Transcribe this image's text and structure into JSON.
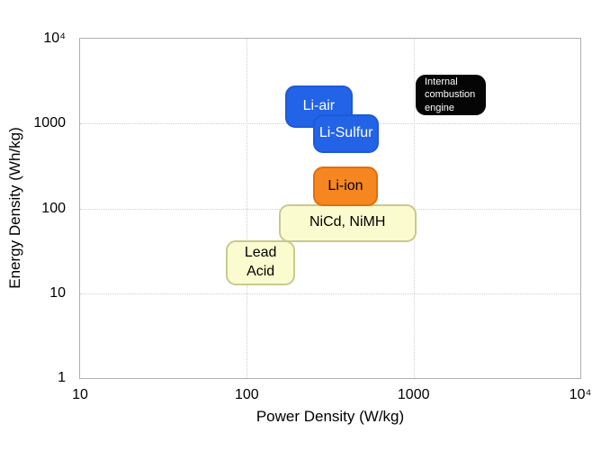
{
  "chart_data": {
    "type": "area",
    "title": "",
    "xlabel": "Power Density (W/kg)",
    "ylabel": "Energy Density (Wh/kg)",
    "x_scale": "log",
    "y_scale": "log",
    "xlim": [
      10,
      10000
    ],
    "ylim": [
      1,
      10000
    ],
    "grid": true,
    "legend": false,
    "x_ticks": [
      {
        "value": 10,
        "label": "10"
      },
      {
        "value": 100,
        "label": "100"
      },
      {
        "value": 1000,
        "label": "1000"
      },
      {
        "value": 10000,
        "label": "10⁴"
      }
    ],
    "y_ticks": [
      {
        "value": 1,
        "label": "1"
      },
      {
        "value": 10,
        "label": "10"
      },
      {
        "value": 100,
        "label": "100"
      },
      {
        "value": 1000,
        "label": "1000"
      },
      {
        "value": 10000,
        "label": "10⁴"
      }
    ],
    "x_gridlines": [
      100,
      1000
    ],
    "y_gridlines": [
      10,
      100,
      1000
    ],
    "style": {
      "frame_color": "#b0b0b0",
      "grid_color": "#cfcfcf",
      "background": "#ffffff"
    },
    "regions": [
      {
        "id": "nicd-nimh",
        "label": "NiCd, NiMH",
        "x_range_wkg": [
          155,
          1040
        ],
        "y_range_whkg": [
          40,
          113
        ],
        "fill": "#FBFBD0",
        "border": "#C9C98F",
        "text_color": "#000000"
      },
      {
        "id": "lead-acid",
        "label": "Lead\nAcid",
        "x_range_wkg": [
          75,
          195
        ],
        "y_range_whkg": [
          12.5,
          42
        ],
        "fill": "#FBFBD0",
        "border": "#C9C98F",
        "text_color": "#000000"
      },
      {
        "id": "li-ion",
        "label": "Li-ion",
        "x_range_wkg": [
          250,
          610
        ],
        "y_range_whkg": [
          105,
          310
        ],
        "fill": "#F6861F",
        "border": "#E06E0D",
        "text_color": "#000000"
      },
      {
        "id": "li-air",
        "label": "Li-air",
        "x_range_wkg": [
          170,
          430
        ],
        "y_range_whkg": [
          900,
          2800
        ],
        "fill": "#2263E8",
        "border": "#1E5AD6",
        "text_color": "#ffffff"
      },
      {
        "id": "li-sulfur",
        "label": "Li-Sulfur",
        "x_range_wkg": [
          250,
          620
        ],
        "y_range_whkg": [
          450,
          1280
        ],
        "fill": "#2263E8",
        "border": "#1E5AD6",
        "text_color": "#ffffff"
      },
      {
        "id": "ice",
        "label": "Internal\ncombustion\nengine",
        "x_range_wkg": [
          1030,
          2700
        ],
        "y_range_whkg": [
          1250,
          3800
        ],
        "fill": "#050505",
        "border": "#050505",
        "text_color": "#ffffff"
      }
    ]
  }
}
